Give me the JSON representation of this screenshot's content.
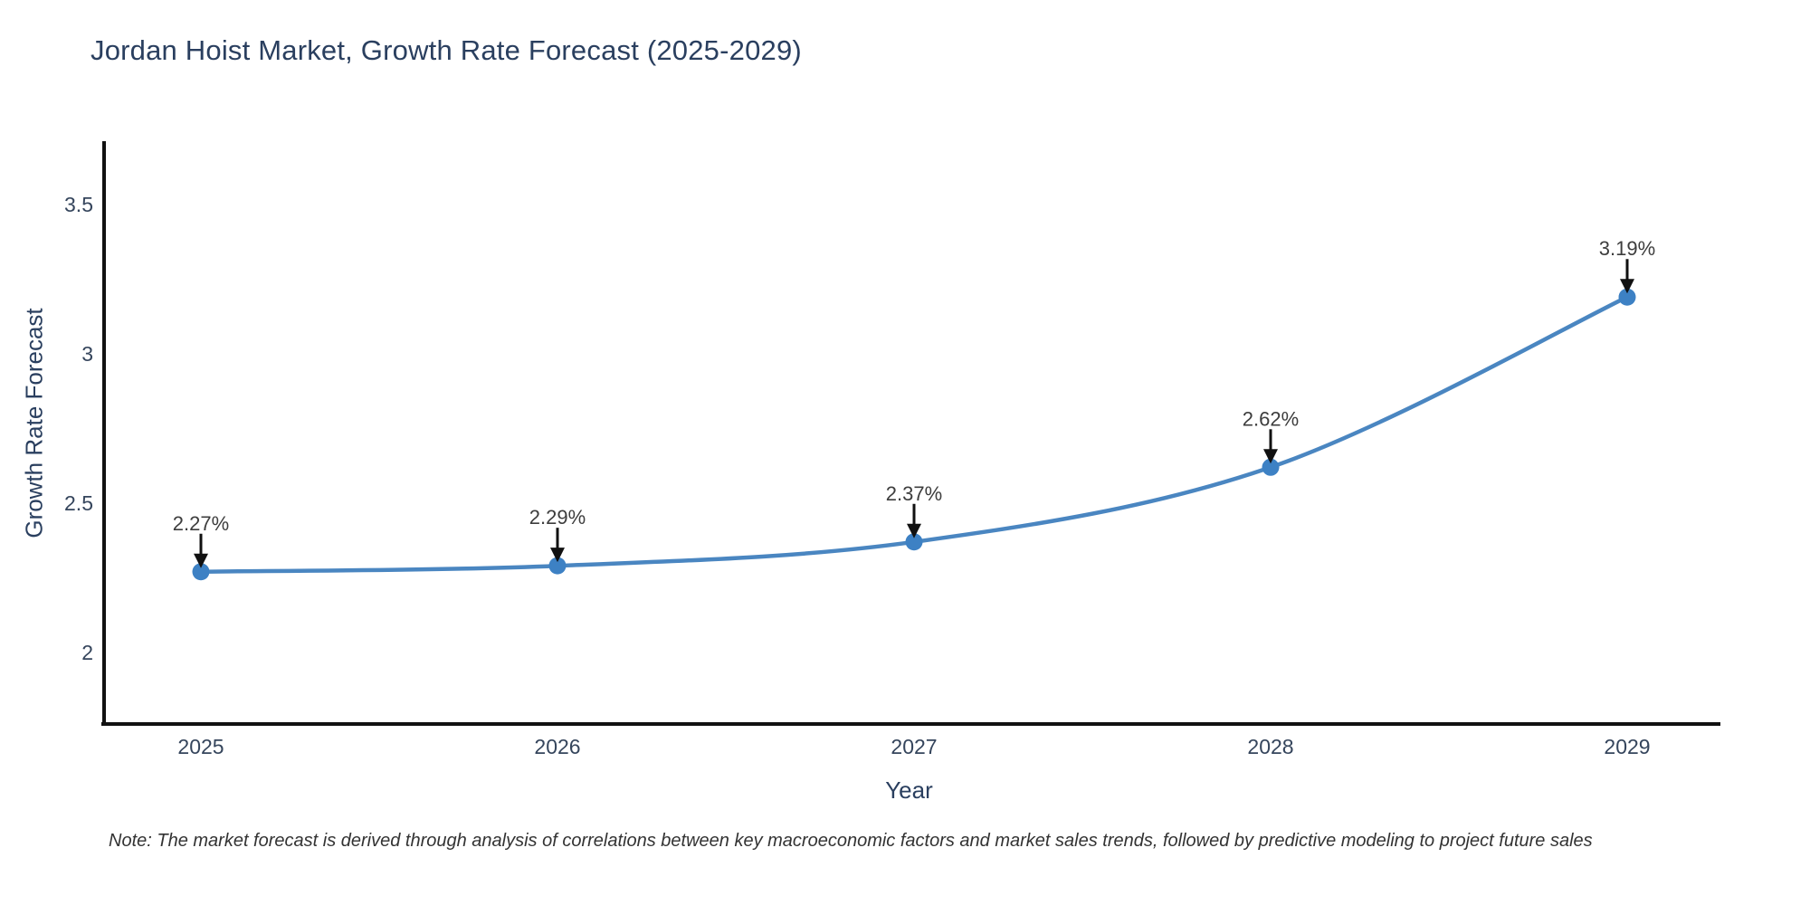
{
  "title": "Jordan Hoist Market, Growth Rate Forecast (2025-2029)",
  "note": "Note: The market forecast is derived through analysis of correlations between key macroeconomic factors and market sales trends, followed by predictive modeling to project future sales",
  "chart_data": {
    "type": "line",
    "x": [
      "2025",
      "2026",
      "2027",
      "2028",
      "2029"
    ],
    "series": [
      {
        "name": "Growth Rate Forecast",
        "values": [
          2.27,
          2.29,
          2.37,
          2.62,
          3.19
        ]
      }
    ],
    "point_labels": [
      "2.27%",
      "2.29%",
      "2.37%",
      "2.62%",
      "3.19%"
    ],
    "title": "Jordan Hoist Market, Growth Rate Forecast (2025-2029)",
    "xlabel": "Year",
    "ylabel": "Growth Rate Forecast",
    "yticks": [
      2,
      2.5,
      3,
      3.5
    ],
    "ylim": [
      1.76,
      3.7
    ],
    "grid": false,
    "legend_position": "none",
    "line_color": "#4a86c1",
    "marker_color": "#3d81c4",
    "axis_color": "#111111",
    "arrow_color": "#111111",
    "text_color": "#2a3f5f"
  }
}
